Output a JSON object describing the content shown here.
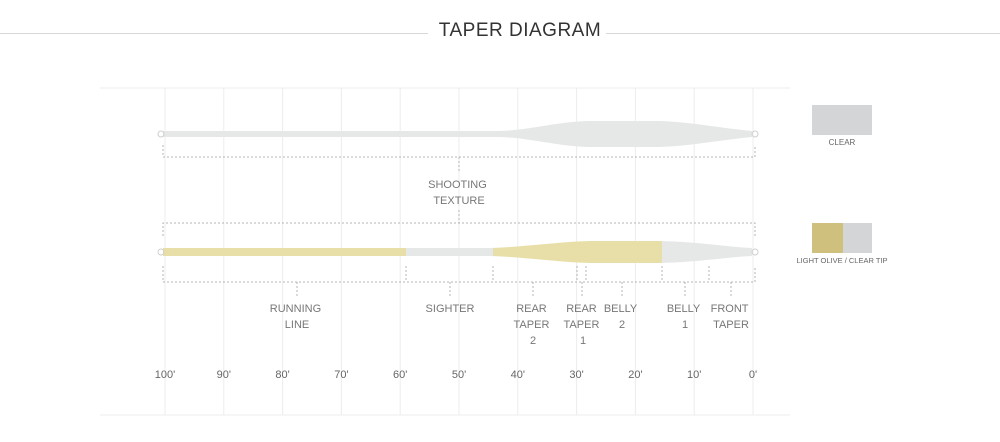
{
  "title": "TAPER DIAGRAM",
  "lines": [
    {
      "id": "clear",
      "color_name": "CLEAR",
      "swatch_colors": [
        "#d3d5d6"
      ],
      "body_color": "#e6e7e7",
      "segments_label": [
        {
          "label": [
            "SHOOTING",
            "TEXTURE"
          ]
        }
      ]
    },
    {
      "id": "olive",
      "color_name": "LIGHT OLIVE / CLEAR TIP",
      "swatch_colors": [
        "#cfc07e",
        "#d3d5d6"
      ],
      "olive_color": "#e8dfa8",
      "clear_color": "#e6e7e7",
      "sections": [
        {
          "label": [
            "RUNNING",
            "LINE"
          ]
        },
        {
          "label": [
            "SIGHTER"
          ]
        },
        {
          "label": [
            "REAR",
            "TAPER",
            "2"
          ]
        },
        {
          "label": [
            "REAR",
            "TAPER",
            "1"
          ]
        },
        {
          "label": [
            "BELLY",
            "2"
          ]
        },
        {
          "label": [
            "BELLY",
            "1"
          ]
        },
        {
          "label": [
            "FRONT",
            "TAPER"
          ]
        }
      ]
    }
  ],
  "scale": {
    "ticks": [
      "100'",
      "90'",
      "80'",
      "70'",
      "60'",
      "50'",
      "40'",
      "30'",
      "20'",
      "10'",
      "0'"
    ]
  },
  "colors": {
    "grid": "#ececec",
    "bracket": "#b5b5b5",
    "label": "#777777",
    "scale_label": "#666666"
  }
}
